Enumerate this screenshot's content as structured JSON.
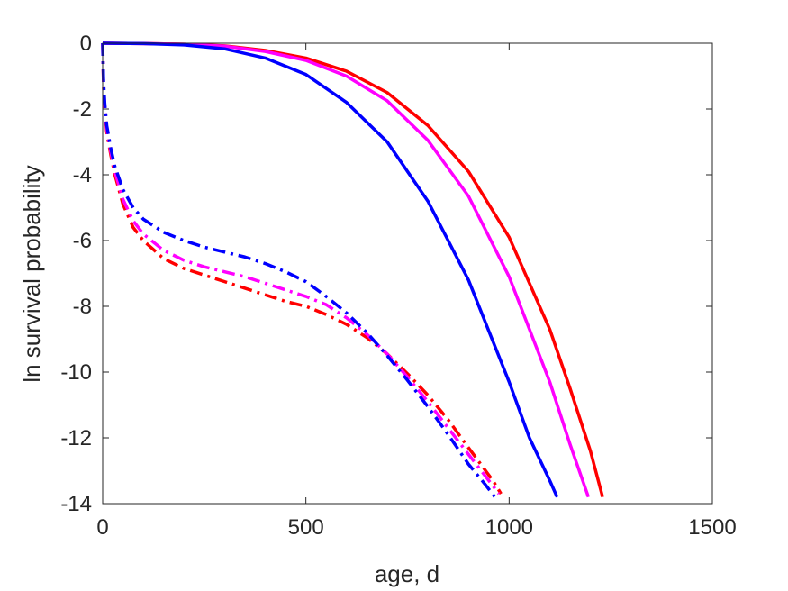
{
  "chart_data": {
    "type": "line",
    "title": "",
    "xlabel": "age, d",
    "ylabel": "ln survival probability",
    "xlim": [
      0,
      1500
    ],
    "ylim": [
      -14,
      0
    ],
    "xticks": [
      0,
      500,
      1000,
      1500
    ],
    "yticks": [
      0,
      -2,
      -4,
      -6,
      -8,
      -10,
      -12,
      -14
    ],
    "xtick_labels": [
      "0",
      "500",
      "1000",
      "1500"
    ],
    "ytick_labels": [
      "0",
      "-2",
      "-4",
      "-6",
      "-8",
      "-10",
      "-12",
      "-14"
    ],
    "grid": false,
    "legend": "none",
    "series": [
      {
        "color": "#ff0000",
        "style": "solid",
        "x": [
          0,
          100,
          200,
          300,
          400,
          500,
          600,
          700,
          800,
          900,
          1000,
          1100,
          1150,
          1200,
          1230
        ],
        "y": [
          0,
          -0.01,
          -0.03,
          -0.08,
          -0.22,
          -0.45,
          -0.85,
          -1.5,
          -2.5,
          -3.9,
          -5.9,
          -8.7,
          -10.5,
          -12.4,
          -13.8
        ]
      },
      {
        "color": "#ff00ff",
        "style": "solid",
        "x": [
          0,
          100,
          200,
          300,
          400,
          500,
          600,
          700,
          800,
          900,
          1000,
          1100,
          1150,
          1195
        ],
        "y": [
          0,
          -0.01,
          -0.03,
          -0.09,
          -0.25,
          -0.52,
          -1.0,
          -1.75,
          -2.95,
          -4.65,
          -7.1,
          -10.3,
          -12.2,
          -13.8
        ]
      },
      {
        "color": "#0000ff",
        "style": "solid",
        "x": [
          0,
          100,
          200,
          300,
          400,
          500,
          600,
          700,
          800,
          900,
          1000,
          1050,
          1100,
          1118
        ],
        "y": [
          0,
          -0.01,
          -0.05,
          -0.17,
          -0.45,
          -0.95,
          -1.8,
          -3.0,
          -4.8,
          -7.2,
          -10.3,
          -12.0,
          -13.3,
          -13.8
        ]
      },
      {
        "color": "#ff0000",
        "style": "dashdot",
        "x": [
          0,
          2,
          5,
          10,
          20,
          30,
          50,
          75,
          100,
          150,
          200,
          250,
          300,
          350,
          400,
          450,
          500,
          550,
          600,
          650,
          700,
          750,
          800,
          850,
          900,
          930,
          960,
          980
        ],
        "y": [
          0,
          -1.3,
          -2.0,
          -2.7,
          -3.4,
          -4.0,
          -4.9,
          -5.6,
          -6.0,
          -6.55,
          -6.85,
          -7.05,
          -7.25,
          -7.45,
          -7.65,
          -7.85,
          -8.0,
          -8.25,
          -8.55,
          -8.95,
          -9.45,
          -10.05,
          -10.7,
          -11.45,
          -12.3,
          -12.8,
          -13.3,
          -13.7
        ]
      },
      {
        "color": "#ff00ff",
        "style": "dashdot",
        "x": [
          0,
          2,
          5,
          10,
          20,
          30,
          50,
          75,
          100,
          150,
          200,
          250,
          300,
          350,
          400,
          450,
          500,
          550,
          600,
          650,
          700,
          750,
          800,
          850,
          900,
          950,
          975
        ],
        "y": [
          0,
          -1.2,
          -1.9,
          -2.6,
          -3.3,
          -3.9,
          -4.75,
          -5.4,
          -5.8,
          -6.3,
          -6.6,
          -6.8,
          -6.95,
          -7.1,
          -7.3,
          -7.5,
          -7.7,
          -7.95,
          -8.35,
          -8.85,
          -9.45,
          -10.15,
          -10.9,
          -11.7,
          -12.5,
          -13.3,
          -13.7
        ]
      },
      {
        "color": "#0000ff",
        "style": "dashdot",
        "x": [
          0,
          2,
          5,
          10,
          20,
          30,
          50,
          75,
          100,
          150,
          200,
          250,
          300,
          350,
          400,
          450,
          500,
          550,
          600,
          650,
          700,
          750,
          800,
          850,
          900,
          940,
          965
        ],
        "y": [
          0,
          -1.1,
          -1.8,
          -2.5,
          -3.2,
          -3.75,
          -4.45,
          -5.0,
          -5.35,
          -5.75,
          -6.0,
          -6.2,
          -6.35,
          -6.5,
          -6.7,
          -6.95,
          -7.25,
          -7.7,
          -8.2,
          -8.8,
          -9.5,
          -10.25,
          -11.05,
          -11.9,
          -12.8,
          -13.4,
          -13.8
        ]
      }
    ]
  }
}
